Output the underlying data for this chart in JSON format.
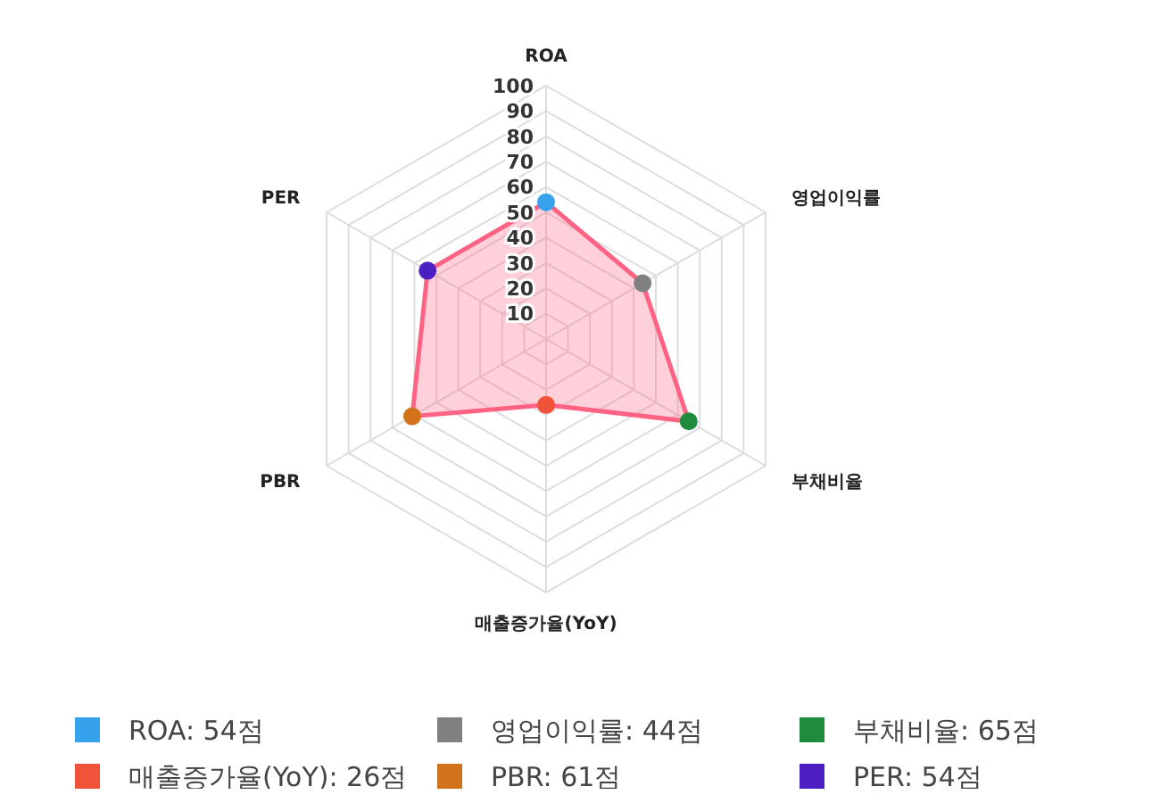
{
  "chart_data": {
    "type": "radar",
    "categories": [
      "ROA",
      "영업이익률",
      "부채비율",
      "매출증가율(YoY)",
      "PBR",
      "PER"
    ],
    "series": [
      {
        "values": [
          54,
          44,
          65,
          26,
          61,
          54
        ],
        "color": "#ff6384",
        "colors": [
          "#36a2eb",
          "#808080",
          "#1e8c3a",
          "#f0533a",
          "#d2731c",
          "#4b1fc1"
        ]
      }
    ],
    "annotations": [
      "ROA: 54점",
      "영업이익률: 44점",
      "부채비율: 65점",
      "매출증가율(YoY): 26점",
      "PBR: 61점",
      "PER: 54점"
    ],
    "ylim": [
      0,
      100
    ],
    "yticks": [
      10,
      20,
      30,
      40,
      50,
      60,
      70,
      80,
      90,
      100
    ],
    "grid": true,
    "marker": "circle"
  }
}
